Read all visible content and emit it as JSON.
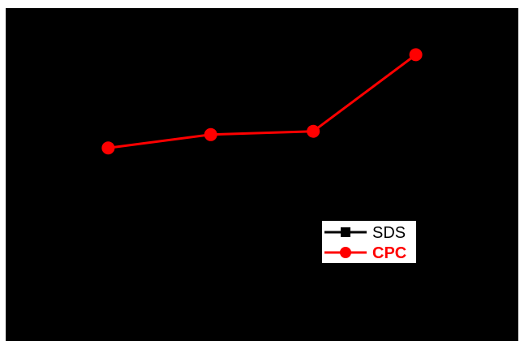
{
  "chart_data": {
    "type": "line",
    "x": [
      1,
      2,
      3,
      4
    ],
    "series": [
      {
        "name": "SDS",
        "values": [
          null,
          null,
          null,
          null
        ],
        "color": "#000000",
        "marker": "square"
      },
      {
        "name": "CPC",
        "values": [
          0.58,
          0.62,
          0.63,
          0.86
        ],
        "color": "#ff0000",
        "marker": "circle"
      }
    ],
    "xlim": [
      0,
      5
    ],
    "ylim": [
      0,
      1
    ],
    "grid": false,
    "legend": "center-right",
    "background": "#000000",
    "page_background": "#ffffff"
  }
}
